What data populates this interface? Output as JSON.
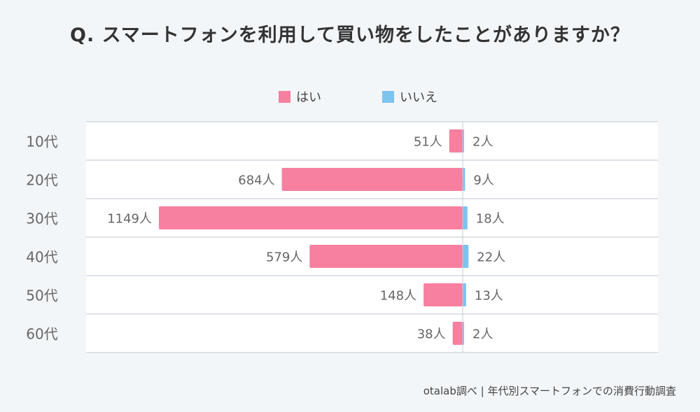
{
  "title": "Q. スマートフォンを利用して買い物をしたことがありますか？",
  "footer": "otalab調べ | 年代別スマートフォンでの消費行動調査",
  "colors": {
    "yes": "#f77f9f",
    "no": "#7cc3ee",
    "background": "#f3f6f8",
    "plot_background": "#ffffff",
    "grid": "#d3d9e0",
    "text": "#666666"
  },
  "chart_data": {
    "type": "bar",
    "orientation": "diverging-horizontal",
    "title": "Q. スマートフォンを利用して買い物をしたことがありますか？",
    "categories": [
      "10代",
      "20代",
      "30代",
      "40代",
      "50代",
      "60代"
    ],
    "series": [
      {
        "name": "はい",
        "values": [
          51,
          684,
          1149,
          579,
          148,
          38
        ],
        "labels": [
          "51人",
          "684人",
          "1149人",
          "579人",
          "148人",
          "38人"
        ]
      },
      {
        "name": "いいえ",
        "values": [
          2,
          9,
          18,
          22,
          13,
          2
        ],
        "labels": [
          "2人",
          "9人",
          "18人",
          "22人",
          "13人",
          "2人"
        ]
      }
    ],
    "legend": [
      "はい",
      "いいえ"
    ],
    "legend_position": "top-center",
    "unit": "人",
    "xlabel": "",
    "ylabel": ""
  }
}
